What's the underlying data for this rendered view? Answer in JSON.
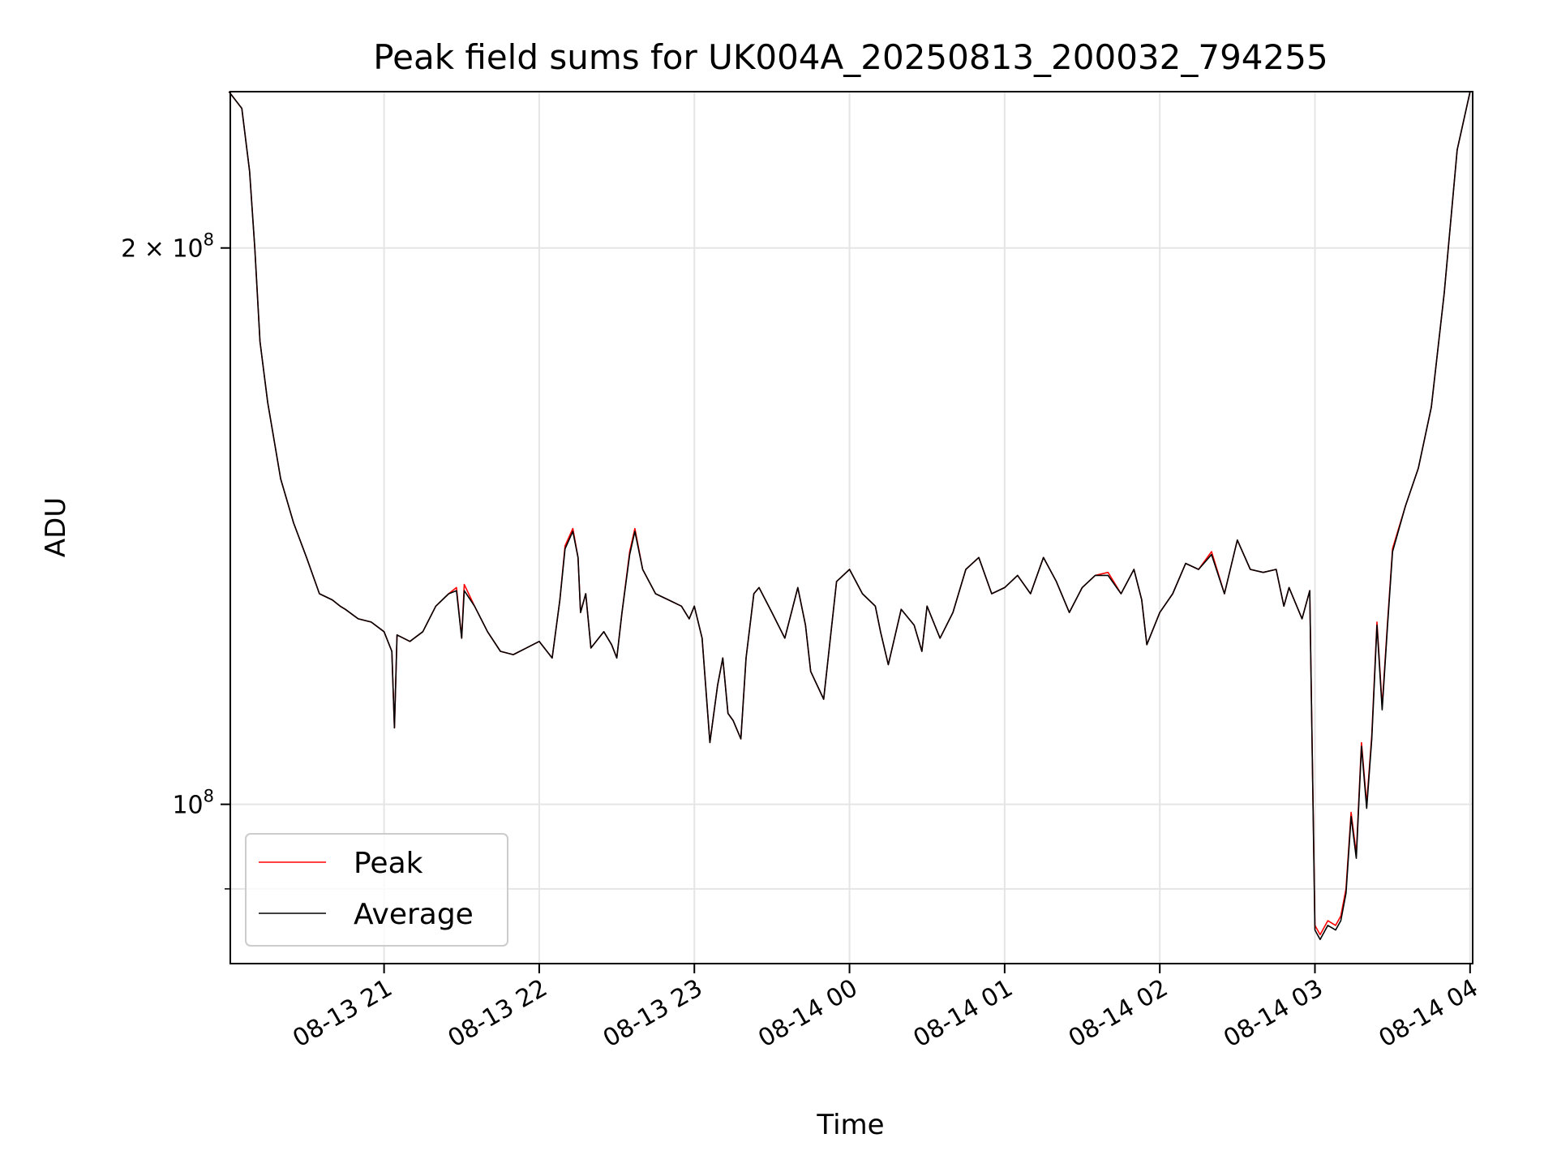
{
  "chart_data": {
    "type": "line",
    "title": "Peak field sums for UK004A_20250813_200032_794255",
    "xlabel": "Time",
    "ylabel": "ADU",
    "yscale": "log",
    "ylim": [
      82000000,
      243000000
    ],
    "xlim": [
      "2025-08-13 20:00:32",
      "2025-08-14 04:01:00"
    ],
    "grid": true,
    "legend_position": "lower-left",
    "x_ticks": [
      {
        "x": "2025-08-13 21:00",
        "label": "08-13 21"
      },
      {
        "x": "2025-08-13 22:00",
        "label": "08-13 22"
      },
      {
        "x": "2025-08-13 23:00",
        "label": "08-13 23"
      },
      {
        "x": "2025-08-14 00:00",
        "label": "08-14 00"
      },
      {
        "x": "2025-08-14 01:00",
        "label": "08-14 01"
      },
      {
        "x": "2025-08-14 02:00",
        "label": "08-14 02"
      },
      {
        "x": "2025-08-14 03:00",
        "label": "08-14 03"
      },
      {
        "x": "2025-08-14 04:00",
        "label": "08-14 04"
      }
    ],
    "y_ticks": [
      {
        "value": 100000000,
        "label_base": "10",
        "label_exp": "8",
        "label_prefix": ""
      },
      {
        "value": 200000000,
        "label_base": "10",
        "label_exp": "8",
        "label_prefix": "2 × "
      }
    ],
    "y_minor_ticks": [
      90000000
    ],
    "x": [
      "2025-08-13 20:00",
      "2025-08-13 20:05",
      "2025-08-13 20:08",
      "2025-08-13 20:10",
      "2025-08-13 20:12",
      "2025-08-13 20:15",
      "2025-08-13 20:20",
      "2025-08-13 20:25",
      "2025-08-13 20:30",
      "2025-08-13 20:35",
      "2025-08-13 20:40",
      "2025-08-13 20:43",
      "2025-08-13 20:45",
      "2025-08-13 20:50",
      "2025-08-13 20:55",
      "2025-08-13 21:00",
      "2025-08-13 21:03",
      "2025-08-13 21:04",
      "2025-08-13 21:05",
      "2025-08-13 21:10",
      "2025-08-13 21:15",
      "2025-08-13 21:20",
      "2025-08-13 21:25",
      "2025-08-13 21:28",
      "2025-08-13 21:30",
      "2025-08-13 21:31",
      "2025-08-13 21:35",
      "2025-08-13 21:40",
      "2025-08-13 21:45",
      "2025-08-13 21:50",
      "2025-08-13 21:55",
      "2025-08-13 22:00",
      "2025-08-13 22:05",
      "2025-08-13 22:08",
      "2025-08-13 22:10",
      "2025-08-13 22:13",
      "2025-08-13 22:15",
      "2025-08-13 22:16",
      "2025-08-13 22:18",
      "2025-08-13 22:20",
      "2025-08-13 22:25",
      "2025-08-13 22:28",
      "2025-08-13 22:30",
      "2025-08-13 22:32",
      "2025-08-13 22:35",
      "2025-08-13 22:37",
      "2025-08-13 22:40",
      "2025-08-13 22:45",
      "2025-08-13 22:50",
      "2025-08-13 22:55",
      "2025-08-13 22:58",
      "2025-08-13 23:00",
      "2025-08-13 23:03",
      "2025-08-13 23:06",
      "2025-08-13 23:09",
      "2025-08-13 23:11",
      "2025-08-13 23:13",
      "2025-08-13 23:15",
      "2025-08-13 23:18",
      "2025-08-13 23:20",
      "2025-08-13 23:23",
      "2025-08-13 23:25",
      "2025-08-13 23:30",
      "2025-08-13 23:35",
      "2025-08-13 23:40",
      "2025-08-13 23:43",
      "2025-08-13 23:45",
      "2025-08-13 23:50",
      "2025-08-13 23:55",
      "2025-08-14 00:00",
      "2025-08-14 00:05",
      "2025-08-14 00:10",
      "2025-08-14 00:12",
      "2025-08-14 00:15",
      "2025-08-14 00:20",
      "2025-08-14 00:25",
      "2025-08-14 00:28",
      "2025-08-14 00:30",
      "2025-08-14 00:35",
      "2025-08-14 00:40",
      "2025-08-14 00:45",
      "2025-08-14 00:50",
      "2025-08-14 00:55",
      "2025-08-14 01:00",
      "2025-08-14 01:05",
      "2025-08-14 01:10",
      "2025-08-14 01:15",
      "2025-08-14 01:20",
      "2025-08-14 01:25",
      "2025-08-14 01:30",
      "2025-08-14 01:35",
      "2025-08-14 01:40",
      "2025-08-14 01:45",
      "2025-08-14 01:50",
      "2025-08-14 01:53",
      "2025-08-14 01:55",
      "2025-08-14 02:00",
      "2025-08-14 02:05",
      "2025-08-14 02:10",
      "2025-08-14 02:15",
      "2025-08-14 02:20",
      "2025-08-14 02:25",
      "2025-08-14 02:30",
      "2025-08-14 02:35",
      "2025-08-14 02:40",
      "2025-08-14 02:45",
      "2025-08-14 02:48",
      "2025-08-14 02:50",
      "2025-08-14 02:55",
      "2025-08-14 02:58",
      "2025-08-14 03:00",
      "2025-08-14 03:02",
      "2025-08-14 03:05",
      "2025-08-14 03:08",
      "2025-08-14 03:10",
      "2025-08-14 03:12",
      "2025-08-14 03:14",
      "2025-08-14 03:16",
      "2025-08-14 03:18",
      "2025-08-14 03:20",
      "2025-08-14 03:22",
      "2025-08-14 03:24",
      "2025-08-14 03:26",
      "2025-08-14 03:28",
      "2025-08-14 03:30",
      "2025-08-14 03:35",
      "2025-08-14 03:40",
      "2025-08-14 03:45",
      "2025-08-14 03:50",
      "2025-08-14 03:55",
      "2025-08-14 04:00"
    ],
    "series": [
      {
        "name": "Peak",
        "color": "#ff0000",
        "values": [
          243000000,
          238000000,
          220000000,
          200000000,
          178000000,
          165000000,
          150000000,
          142000000,
          136000000,
          130000000,
          129000000,
          128000000,
          127500000,
          126000000,
          125500000,
          124000000,
          121000000,
          110000000,
          123500000,
          122500000,
          124000000,
          128000000,
          130000000,
          131000000,
          123000000,
          131500000,
          128000000,
          124000000,
          121000000,
          120500000,
          121500000,
          122500000,
          120000000,
          129000000,
          138000000,
          141000000,
          136000000,
          127000000,
          130000000,
          121500000,
          124000000,
          122000000,
          120000000,
          127000000,
          137000000,
          141000000,
          134000000,
          130000000,
          129000000,
          128000000,
          126000000,
          128000000,
          123000000,
          108000000,
          116000000,
          120000000,
          112000000,
          111000000,
          108500000,
          120000000,
          130000000,
          131000000,
          127000000,
          123000000,
          131000000,
          125000000,
          118000000,
          114000000,
          132000000,
          134000000,
          130000000,
          128000000,
          124000000,
          119000000,
          127500000,
          125000000,
          121000000,
          128000000,
          123000000,
          127000000,
          134000000,
          136000000,
          130000000,
          131000000,
          133000000,
          130000000,
          136000000,
          132000000,
          127000000,
          131000000,
          133000000,
          133500000,
          130000000,
          134000000,
          129000000,
          122000000,
          127000000,
          130000000,
          135000000,
          134000000,
          137000000,
          130000000,
          139000000,
          134000000,
          133500000,
          134000000,
          128000000,
          131000000,
          126000000,
          130500000,
          86000000,
          85000000,
          86500000,
          86000000,
          87000000,
          90000000,
          99000000,
          94000000,
          108000000,
          100000000,
          109000000,
          125500000,
          113000000,
          125000000,
          137500000,
          145000000,
          152000000,
          164000000,
          189000000,
          226000000,
          243000000
        ]
      },
      {
        "name": "Average",
        "color": "#000000",
        "values": [
          243000000,
          238000000,
          220000000,
          200000000,
          178000000,
          165000000,
          150000000,
          142000000,
          136000000,
          130000000,
          129000000,
          128000000,
          127500000,
          126000000,
          125500000,
          124000000,
          121000000,
          110000000,
          123500000,
          122500000,
          124000000,
          128000000,
          130000000,
          130500000,
          123000000,
          130500000,
          128000000,
          124000000,
          121000000,
          120500000,
          121500000,
          122500000,
          120000000,
          129000000,
          137500000,
          140500000,
          136000000,
          127000000,
          130000000,
          121500000,
          124000000,
          122000000,
          120000000,
          127000000,
          136500000,
          140500000,
          134000000,
          130000000,
          129000000,
          128000000,
          126000000,
          128000000,
          123000000,
          108000000,
          116000000,
          120000000,
          112000000,
          111000000,
          108500000,
          120000000,
          130000000,
          131000000,
          127000000,
          123000000,
          131000000,
          125000000,
          118000000,
          114000000,
          132000000,
          134000000,
          130000000,
          128000000,
          124000000,
          119000000,
          127500000,
          125000000,
          121000000,
          128000000,
          123000000,
          127000000,
          134000000,
          136000000,
          130000000,
          131000000,
          133000000,
          130000000,
          136000000,
          132000000,
          127000000,
          131000000,
          133000000,
          133000000,
          130000000,
          134000000,
          129000000,
          122000000,
          127000000,
          130000000,
          135000000,
          134000000,
          136500000,
          130000000,
          139000000,
          134000000,
          133500000,
          134000000,
          128000000,
          131000000,
          126000000,
          130500000,
          85500000,
          84500000,
          86000000,
          85500000,
          86500000,
          89500000,
          98500000,
          93500000,
          107500000,
          99500000,
          108500000,
          125000000,
          112500000,
          124500000,
          137000000,
          145000000,
          152000000,
          164000000,
          189000000,
          226000000,
          243000000
        ]
      }
    ]
  }
}
